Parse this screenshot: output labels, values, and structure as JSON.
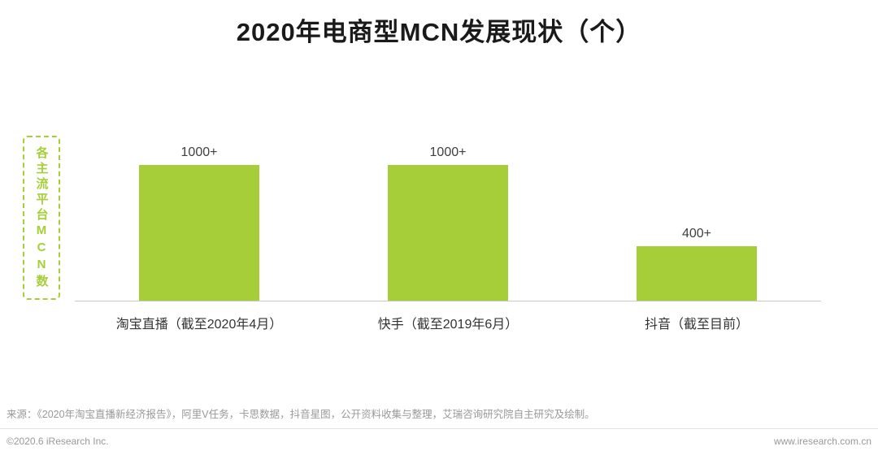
{
  "title": "2020年电商型MCN发展现状（个）",
  "y_axis_label": "各主流平台MCN数",
  "chart_data": {
    "type": "bar",
    "title": "2020年电商型MCN发展现状（个）",
    "categories": [
      "淘宝直播（截至2020年4月）",
      "快手（截至2019年6月）",
      "抖音（截至目前）"
    ],
    "values": [
      1000,
      1000,
      400
    ],
    "value_labels": [
      "1000+",
      "1000+",
      "400+"
    ],
    "xlabel": "",
    "ylabel": "各主流平台MCN数",
    "ylim": [
      0,
      1300
    ],
    "grid": false,
    "legend": "none",
    "bar_color": "#a5ce39"
  },
  "source_note": "来源：《2020年淘宝直播新经济报告》，阿里V任务，卡思数据，抖音星图，公开资料收集与整理，艾瑞咨询研究院自主研究及绘制。",
  "footer": {
    "left": "©2020.6 iResearch Inc.",
    "right": "www.iresearch.com.cn"
  },
  "colors": {
    "accent_green": "#a5ce39",
    "axis_line": "#c9c9c9",
    "muted_text": "#999999"
  }
}
